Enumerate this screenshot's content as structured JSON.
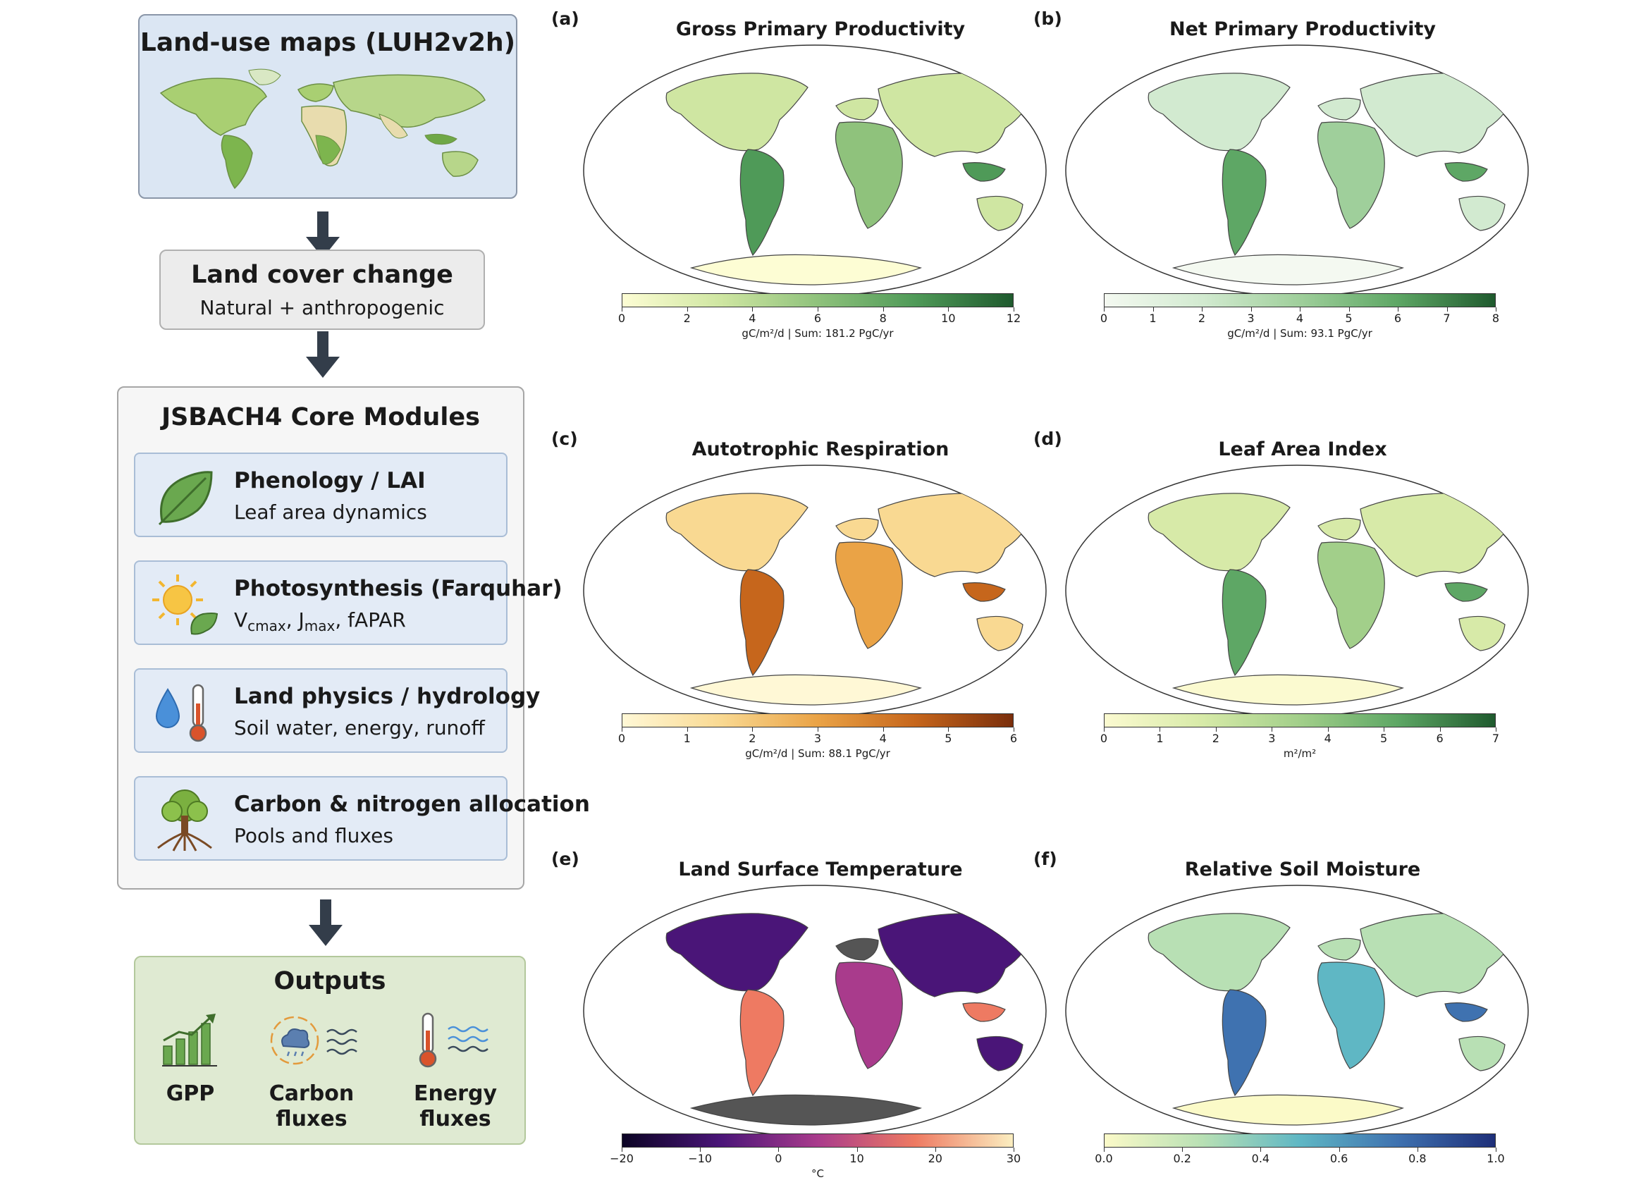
{
  "flow": {
    "landuse": {
      "title": "Land-use maps (LUH2v2h)"
    },
    "landcover": {
      "title": "Land cover change",
      "subtitle": "Natural + anthropogenic"
    },
    "core": {
      "title": "JSBACH4 Core Modules",
      "modules": [
        {
          "title": "Phenology / LAI",
          "subtitle": "Leaf area dynamics",
          "icon": "leaf-icon"
        },
        {
          "title": "Photosynthesis (Farquhar)",
          "subtitle_parts": [
            "V",
            "cmax",
            ", J",
            "max",
            ", fAPAR"
          ],
          "icon": "sun-leaf-icon"
        },
        {
          "title": "Land physics / hydrology",
          "subtitle": "Soil water, energy, runoff",
          "icon": "water-thermometer-icon"
        },
        {
          "title": "Carbon & nitrogen allocation",
          "subtitle": "Pools and fluxes",
          "icon": "tree-icon"
        }
      ]
    },
    "outputs": {
      "title": "Outputs",
      "items": [
        {
          "label": "GPP",
          "icon": "bar-chart-icon"
        },
        {
          "label_lines": [
            "Carbon",
            "fluxes"
          ],
          "icon": "cloud-cycle-icon"
        },
        {
          "label_lines": [
            "Energy",
            "fluxes"
          ],
          "icon": "thermometer-waves-icon"
        }
      ]
    }
  },
  "panels": [
    {
      "letter": "(a)",
      "title": "Gross Primary Productivity",
      "ticks": [
        "0",
        "2",
        "4",
        "6",
        "8",
        "10",
        "12"
      ],
      "cbar_label": "gC/m²/d | Sum: 181.2 PgC/yr",
      "colors": [
        "#fdfdd4",
        "#cfe6a2",
        "#8fc27c",
        "#4f9a58",
        "#1f5a2e"
      ]
    },
    {
      "letter": "(b)",
      "title": "Net Primary Productivity",
      "ticks": [
        "0",
        "1",
        "2",
        "3",
        "4",
        "5",
        "6",
        "7",
        "8"
      ],
      "cbar_label": "gC/m²/d | Sum: 93.1 PgC/yr",
      "colors": [
        "#f4f9f1",
        "#d2ead0",
        "#9fcf9b",
        "#5ea765",
        "#1f5a2e"
      ]
    },
    {
      "letter": "(c)",
      "title": "Autotrophic Respiration",
      "ticks": [
        "0",
        "1",
        "2",
        "3",
        "4",
        "5",
        "6"
      ],
      "cbar_label": "gC/m²/d | Sum: 88.1 PgC/yr",
      "colors": [
        "#fff8d6",
        "#f9d992",
        "#eaa346",
        "#c6661c",
        "#7a2e0c"
      ]
    },
    {
      "letter": "(d)",
      "title": "Leaf Area Index",
      "ticks": [
        "0",
        "1",
        "2",
        "3",
        "4",
        "5",
        "6",
        "7"
      ],
      "cbar_label": "m²/m²",
      "colors": [
        "#fbfad0",
        "#d7eaa8",
        "#a2cf8a",
        "#5ea765",
        "#1f5a2e"
      ]
    },
    {
      "letter": "(e)",
      "title": "Land Surface Temperature",
      "ticks": [
        "−20",
        "−10",
        "0",
        "10",
        "20",
        "30"
      ],
      "cbar_label": "°C",
      "colors": [
        "#0b0424",
        "#4a1578",
        "#a93b8c",
        "#ee7a62",
        "#fbeec0"
      ]
    },
    {
      "letter": "(f)",
      "title": "Relative Soil Moisture",
      "ticks": [
        "0.0",
        "0.2",
        "0.4",
        "0.6",
        "0.8",
        "1.0"
      ],
      "cbar_label": "",
      "colors": [
        "#fbfac8",
        "#b8e0b4",
        "#5fb7c4",
        "#3f72b0",
        "#1e2f79"
      ]
    }
  ]
}
